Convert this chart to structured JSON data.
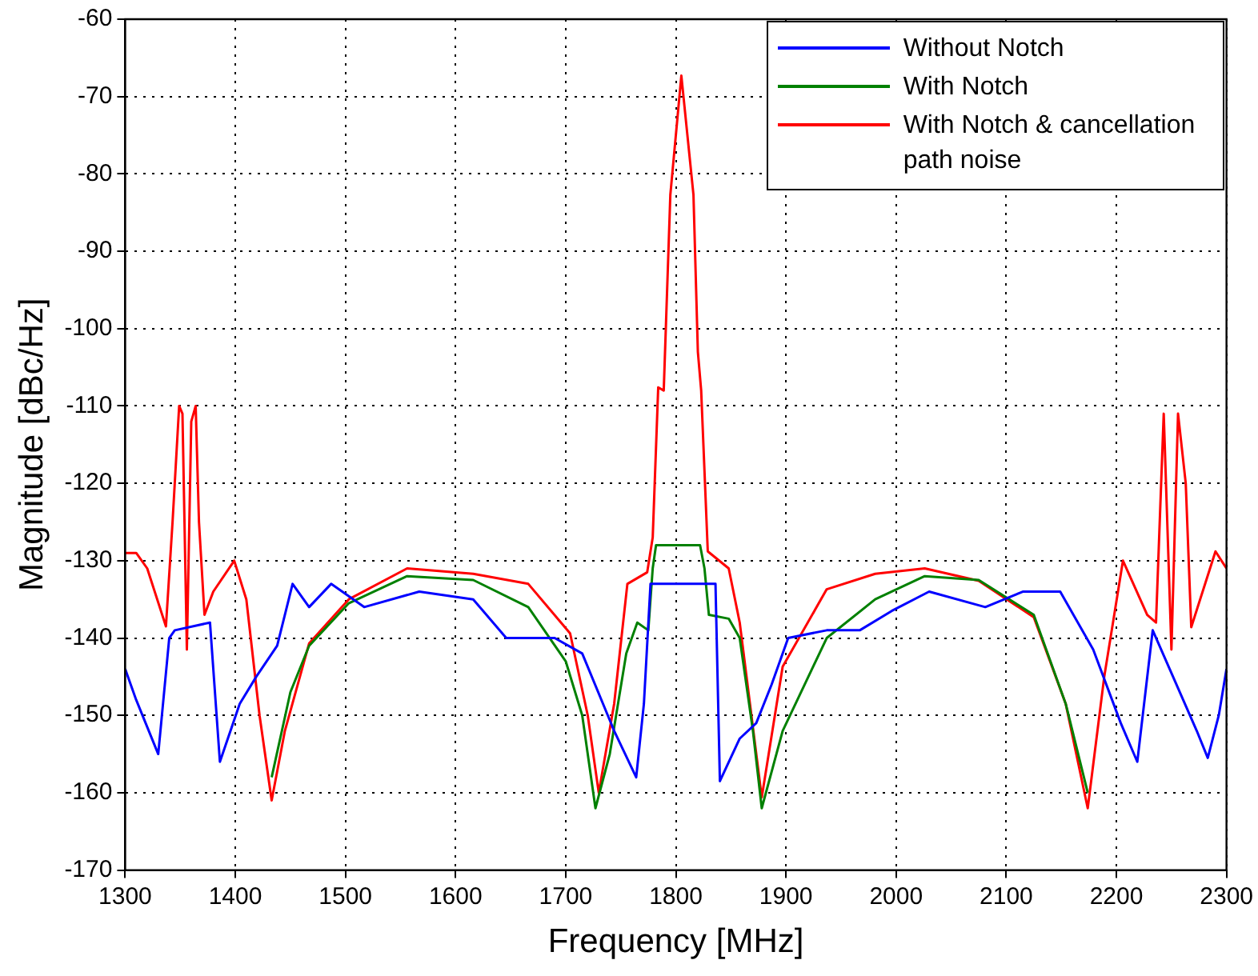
{
  "chart_data": {
    "type": "line",
    "xlabel": "Frequency [MHz]",
    "ylabel": "Magnitude [dBc/Hz]",
    "xlim": [
      1300,
      2300
    ],
    "xticks": [
      1300,
      1400,
      1500,
      1600,
      1700,
      1800,
      1900,
      2000,
      2100,
      2200,
      2300
    ],
    "ylim": [
      -170,
      -60
    ],
    "yticks": [
      -170,
      -160,
      -150,
      -140,
      -130,
      -120,
      -110,
      -100,
      -90,
      -80,
      -70,
      -60
    ],
    "grid": true,
    "legend": "top right",
    "series": [
      {
        "name": "Without Notch",
        "color": "#0000ff",
        "x": [
          1300,
          1310,
          1330,
          1340,
          1345,
          1377,
          1386,
          1404,
          1419,
          1438,
          1452,
          1467,
          1487,
          1517,
          1567,
          1616,
          1646,
          1690,
          1715,
          1744,
          1764,
          1771,
          1777,
          1836,
          1840,
          1858,
          1873,
          1887,
          1902,
          1937,
          1967,
          1996,
          2030,
          2081,
          2115,
          2149,
          2179,
          2204,
          2219,
          2233,
          2273,
          2283,
          2293,
          2300
        ],
        "values": [
          -144,
          -148,
          -155,
          -140,
          -139,
          -138,
          -156,
          -148.5,
          -145,
          -141,
          -133,
          -136,
          -133,
          -136,
          -134,
          -135,
          -140,
          -140,
          -142,
          -152,
          -158,
          -148.5,
          -133,
          -133,
          -158.5,
          -153,
          -151,
          -146,
          -140,
          -139,
          -139,
          -136.5,
          -134,
          -136,
          -134,
          -134,
          -141.5,
          -151,
          -156,
          -139,
          -152,
          -155.5,
          -150,
          -144
        ]
      },
      {
        "name": "With Notch",
        "color": "#008000",
        "x": [
          1433,
          1450,
          1467,
          1503,
          1556,
          1616,
          1666,
          1700,
          1715,
          1727,
          1740,
          1755,
          1765,
          1775,
          1779,
          1782,
          1822,
          1826,
          1830,
          1848,
          1858,
          1870,
          1878,
          1897,
          1937,
          1981,
          2026,
          2075,
          2125,
          2154,
          2174
        ],
        "values": [
          -158,
          -147,
          -141,
          -135.5,
          -132,
          -132.5,
          -136,
          -143,
          -150,
          -162,
          -155,
          -142,
          -138,
          -139,
          -131,
          -128,
          -128,
          -131,
          -137,
          -137.5,
          -140,
          -152,
          -162,
          -152,
          -140,
          -135,
          -132,
          -132.5,
          -137,
          -148.5,
          -160
        ]
      },
      {
        "name": "With Notch & cancellation path noise",
        "color": "#ff0000",
        "x": [
          1300,
          1310,
          1320,
          1337,
          1343,
          1349,
          1352,
          1356,
          1360,
          1364,
          1367,
          1372,
          1380,
          1399,
          1410,
          1422,
          1433,
          1445,
          1467,
          1503,
          1556,
          1616,
          1666,
          1704,
          1720,
          1730,
          1744,
          1756,
          1774,
          1779,
          1784,
          1789,
          1795,
          1805,
          1816,
          1820,
          1823,
          1829,
          1848,
          1858,
          1878,
          1897,
          1937,
          1981,
          2026,
          2075,
          2125,
          2154,
          2174,
          2189,
          2206,
          2228,
          2236,
          2243,
          2250,
          2256,
          2263,
          2268,
          2290,
          2300
        ],
        "values": [
          -129,
          -129,
          -131,
          -138.5,
          -125,
          -110,
          -111,
          -141.5,
          -112,
          -110,
          -125,
          -137,
          -134,
          -130,
          -135,
          -150,
          -161,
          -152,
          -140.7,
          -135,
          -131,
          -131.7,
          -133,
          -139.4,
          -150,
          -160,
          -148.5,
          -133,
          -131.5,
          -127,
          -107.6,
          -108,
          -82.7,
          -67.3,
          -82.7,
          -103,
          -108,
          -128.8,
          -131,
          -138,
          -160.6,
          -143.7,
          -133.7,
          -131.7,
          -131,
          -132.6,
          -137.3,
          -148.5,
          -162,
          -145,
          -130,
          -137,
          -138,
          -111,
          -141.5,
          -111,
          -120,
          -138.6,
          -128.8,
          -131
        ]
      }
    ]
  }
}
